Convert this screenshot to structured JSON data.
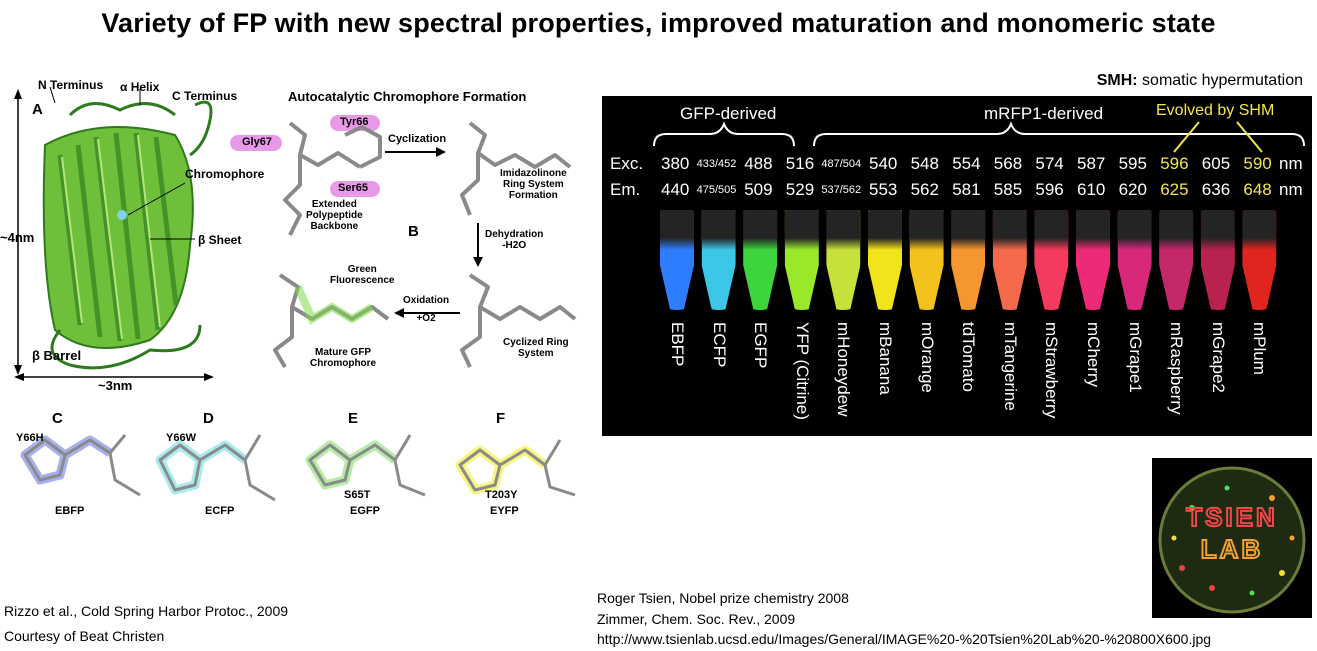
{
  "title": "Variety of FP with new spectral properties, improved maturation and monomeric state",
  "left_figure": {
    "panel_a": {
      "letter": "A",
      "n_terminus": "N Terminus",
      "alpha_helix": "α Helix",
      "c_terminus": "C Terminus",
      "chromophore": "Chromophore",
      "beta_sheet": "β Sheet",
      "beta_barrel": "β Barrel",
      "height": "~4nm",
      "width": "~3nm"
    },
    "panel_b": {
      "letter": "B",
      "heading": "Autocatalytic Chromophore Formation",
      "tyr66": "Tyr66",
      "gly67": "Gly67",
      "ser65": "Ser65",
      "backbone": [
        "Extended",
        "Polypeptide",
        "Backbone"
      ],
      "cyclization": "Cyclization",
      "imidazolinone": [
        "Imidazolinone",
        "Ring System",
        "Formation"
      ],
      "dehydration": [
        "Dehydration",
        "-H2O"
      ],
      "cyclized": [
        "Cyclized Ring",
        "System"
      ],
      "oxidation": [
        "Oxidation",
        "+O2"
      ],
      "green_fluorescence": [
        "Green",
        "Fluorescence"
      ],
      "mature": [
        "Mature GFP",
        "Chromophore"
      ]
    },
    "variants": [
      {
        "letter": "C",
        "mutation": "Y66H",
        "name": "EBFP",
        "color": "#3b4fd6"
      },
      {
        "letter": "D",
        "mutation": "Y66W",
        "name": "ECFP",
        "color": "#3fd0d8"
      },
      {
        "letter": "E",
        "mutation": "S65T",
        "name": "EGFP",
        "color": "#5ad33a"
      },
      {
        "letter": "F",
        "mutation": "T203Y",
        "name": "EYFP",
        "color": "#f2ec2a"
      }
    ]
  },
  "smh_note": {
    "bold": "SMH:",
    "text": " somatic hypermutation"
  },
  "photo": {
    "group_gfp": "GFP-derived",
    "group_mrfp": "mRFP1-derived",
    "group_shm": "Evolved by SHM",
    "exc_label": "Exc.",
    "em_label": "Em.",
    "unit": "nm",
    "proteins": [
      {
        "name": "EBFP",
        "exc": "380",
        "em": "440",
        "small": false,
        "shm": false,
        "color": "#2f7dff"
      },
      {
        "name": "ECFP",
        "exc": "433/452",
        "em": "475/505",
        "small": true,
        "shm": false,
        "color": "#3cc6e8"
      },
      {
        "name": "EGFP",
        "exc": "488",
        "em": "509",
        "small": false,
        "shm": false,
        "color": "#3ed43e"
      },
      {
        "name": "YFP (Citrine)",
        "exc": "516",
        "em": "529",
        "small": false,
        "shm": false,
        "color": "#9ae82a"
      },
      {
        "name": "mHoneydew",
        "exc": "487/504",
        "em": "537/562",
        "small": true,
        "shm": false,
        "color": "#c8e03a"
      },
      {
        "name": "mBanana",
        "exc": "540",
        "em": "553",
        "small": false,
        "shm": false,
        "color": "#f2e41c"
      },
      {
        "name": "mOrange",
        "exc": "548",
        "em": "562",
        "small": false,
        "shm": false,
        "color": "#f4c21c"
      },
      {
        "name": "tdTomato",
        "exc": "554",
        "em": "581",
        "small": false,
        "shm": false,
        "color": "#f59630"
      },
      {
        "name": "mTangerine",
        "exc": "568",
        "em": "585",
        "small": false,
        "shm": false,
        "color": "#f46a4a"
      },
      {
        "name": "mStrawberry",
        "exc": "574",
        "em": "596",
        "small": false,
        "shm": false,
        "color": "#f43a5e"
      },
      {
        "name": "mCherry",
        "exc": "587",
        "em": "610",
        "small": false,
        "shm": false,
        "color": "#ee2a78"
      },
      {
        "name": "mGrape1",
        "exc": "595",
        "em": "620",
        "small": false,
        "shm": false,
        "color": "#d8287a"
      },
      {
        "name": "mRaspberry",
        "exc": "596",
        "em": "625",
        "small": false,
        "shm": true,
        "color": "#c4286a"
      },
      {
        "name": "mGrape2",
        "exc": "605",
        "em": "636",
        "small": false,
        "shm": false,
        "color": "#b8224e"
      },
      {
        "name": "mPlum",
        "exc": "590",
        "em": "648",
        "small": false,
        "shm": true,
        "color": "#e0241e"
      }
    ]
  },
  "dish_text": {
    "line1": "TSIEN",
    "line2": "LAB"
  },
  "references_left": [
    "Rizzo et al.,  Cold Spring Harbor Protoc., 2009",
    "Courtesy of Beat Christen"
  ],
  "references_right": [
    "Roger Tsien, Nobel prize chemistry 2008",
    "Zimmer, Chem. Soc. Rev., 2009",
    "http://www.tsienlab.ucsd.edu/Images/General/IMAGE%20-%20Tsien%20Lab%20-%20800X600.jpg"
  ]
}
